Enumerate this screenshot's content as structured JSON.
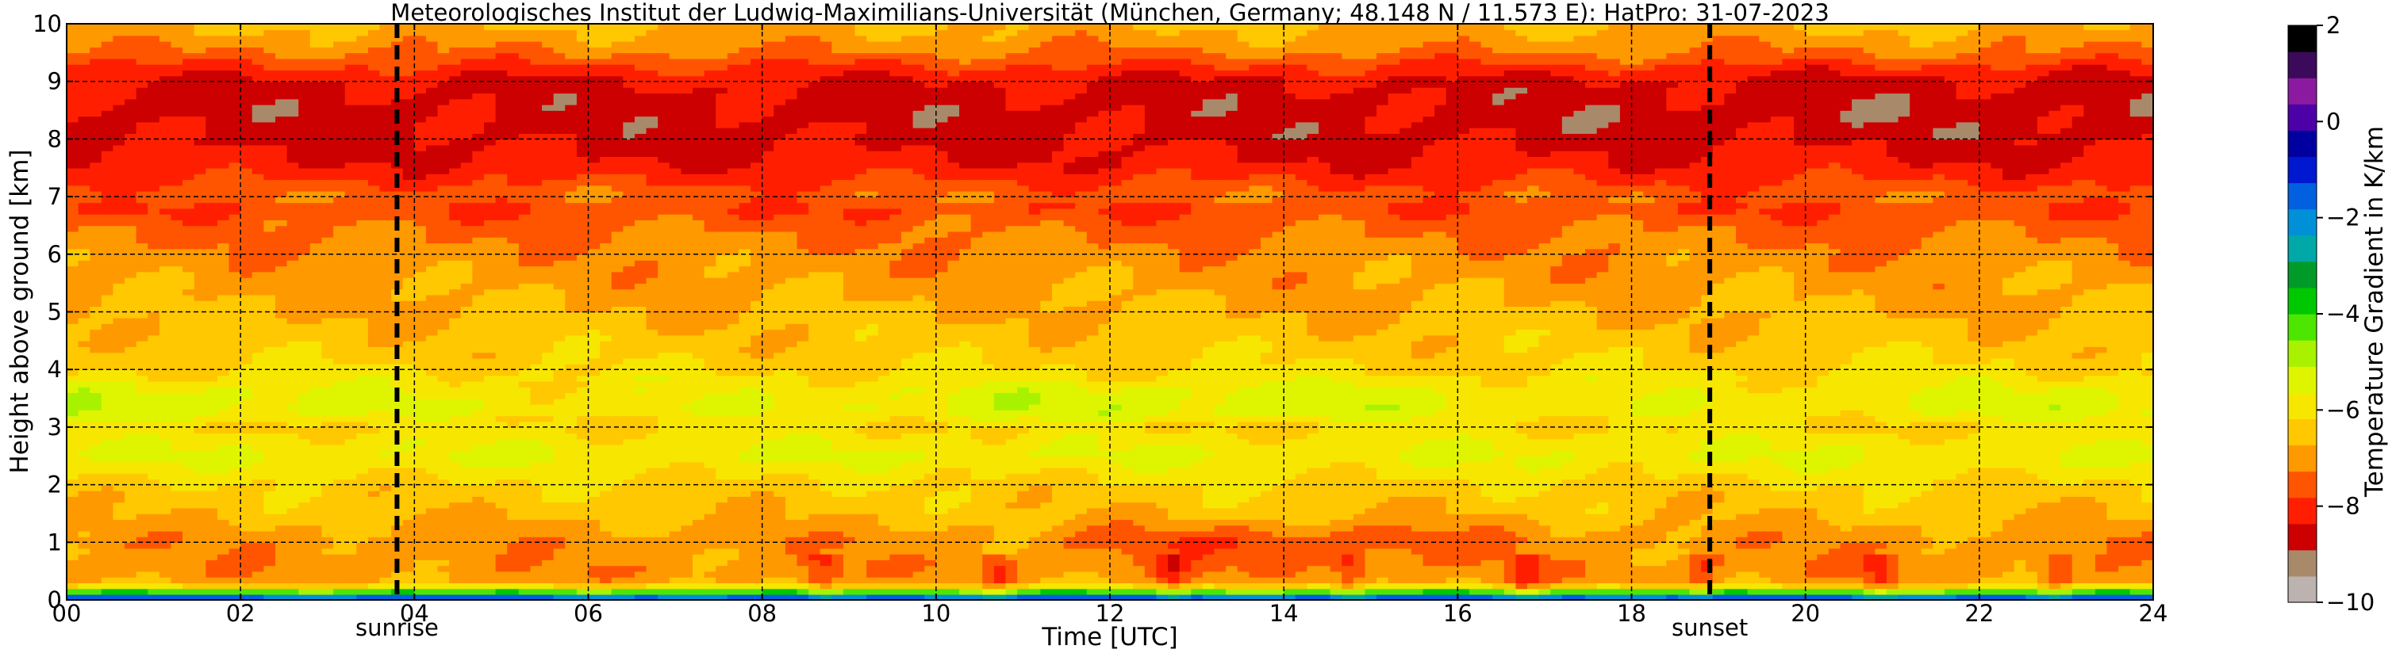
{
  "chart_data": {
    "type": "heatmap",
    "title": "Meteorologisches Institut der Ludwig-Maximilians-Universität (München, Germany; 48.148 N / 11.573 E):    HatPro: 31-07-2023",
    "xlabel": "Time [UTC]",
    "ylabel": "Height above ground [km]",
    "xlim": [
      0,
      24
    ],
    "ylim": [
      0,
      10
    ],
    "x_ticks": [
      0,
      2,
      4,
      6,
      8,
      10,
      12,
      14,
      16,
      18,
      20,
      22,
      24
    ],
    "x_tick_labels": [
      "00",
      "02",
      "04",
      "06",
      "08",
      "10",
      "12",
      "14",
      "16",
      "18",
      "20",
      "22",
      "24"
    ],
    "y_ticks": [
      0,
      1,
      2,
      3,
      4,
      5,
      6,
      7,
      8,
      9,
      10
    ],
    "y_tick_labels": [
      "0",
      "1",
      "2",
      "3",
      "4",
      "5",
      "6",
      "7",
      "8",
      "9",
      "10"
    ],
    "grid": true,
    "annotations": [
      {
        "label": "sunrise",
        "x": 3.8
      },
      {
        "label": "sunset",
        "x": 18.9
      }
    ],
    "colorbar": {
      "label": "Temperature Gradient in K/km",
      "range": [
        -10,
        2
      ],
      "ticks": [
        2,
        0,
        -2,
        -4,
        -6,
        -8,
        -10
      ],
      "tick_labels": [
        "2",
        "0",
        "−2",
        "−4",
        "−6",
        "−8",
        "−10"
      ],
      "colors": [
        "#bcb3b0",
        "#a88a6a",
        "#cc0000",
        "#ff1f00",
        "#ff5500",
        "#ff9900",
        "#ffc800",
        "#f7e600",
        "#dff500",
        "#a8f200",
        "#4de600",
        "#00c800",
        "#009a28",
        "#00a8a8",
        "#0090d8",
        "#0060e0",
        "#0018d0",
        "#0000a0",
        "#4b00a8",
        "#8c1aa0",
        "#3c0a5a",
        "#000000"
      ]
    },
    "profile": {
      "heights_km": [
        0.0,
        0.1,
        0.2,
        0.3,
        0.5,
        0.8,
        1.0,
        1.5,
        2.0,
        2.3,
        2.5,
        2.8,
        3.0,
        3.3,
        3.6,
        4.0,
        4.5,
        5.0,
        5.5,
        6.0,
        6.5,
        6.8,
        7.0,
        7.3,
        7.6,
        8.0,
        8.5,
        9.0,
        9.3,
        9.5,
        9.8,
        10.0
      ],
      "gradient_K_per_km": [
        -0.5,
        -3.0,
        -5.5,
        -6.8,
        -7.1,
        -7.0,
        -7.1,
        -6.6,
        -6.3,
        -5.9,
        -5.6,
        -5.9,
        -6.2,
        -5.5,
        -5.6,
        -6.2,
        -6.5,
        -6.7,
        -6.9,
        -7.1,
        -7.4,
        -7.8,
        -7.4,
        -7.9,
        -8.3,
        -8.5,
        -8.6,
        -8.4,
        -7.8,
        -7.3,
        -6.9,
        -6.7
      ]
    }
  }
}
